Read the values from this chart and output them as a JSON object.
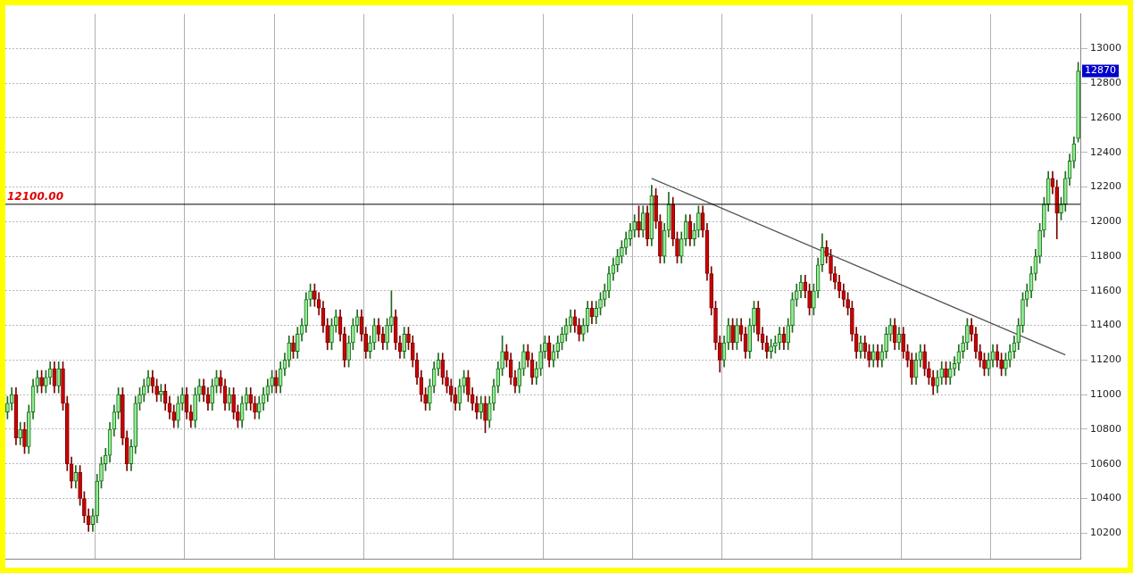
{
  "chart_data": {
    "type": "candlestick",
    "categories": [
      null,
      null,
      null,
      null,
      null,
      null,
      null,
      null,
      null,
      null,
      null,
      null,
      null,
      null,
      null,
      null,
      null,
      null,
      null,
      null,
      null,
      null,
      null,
      null,
      null,
      null,
      null,
      null,
      null,
      null,
      null,
      null,
      null,
      null,
      null,
      null,
      null,
      null,
      null,
      null,
      null,
      null,
      null,
      null,
      null,
      null,
      null,
      null,
      null,
      null,
      null,
      null,
      null,
      null,
      null,
      null,
      null,
      null,
      null,
      null,
      null,
      null,
      null,
      null,
      null,
      null,
      null,
      null,
      null,
      null,
      null,
      null,
      null,
      null,
      null,
      null,
      null,
      null,
      null,
      null,
      null,
      null,
      null,
      null,
      null,
      null,
      null,
      null,
      null,
      null,
      null,
      null,
      null,
      null,
      null,
      null,
      null,
      null,
      null,
      null,
      null,
      null,
      null,
      null,
      null,
      null,
      null,
      null,
      null,
      null,
      null,
      null,
      null,
      null,
      null,
      null,
      null,
      null,
      null,
      null,
      null,
      null,
      null,
      null,
      null,
      null,
      null,
      null,
      null,
      null,
      null,
      null,
      null,
      null,
      null,
      null,
      null,
      null,
      null,
      null,
      null,
      null,
      null,
      null,
      null,
      null,
      null,
      null,
      null,
      null,
      null,
      null,
      null,
      null,
      null,
      null,
      null,
      null,
      null,
      null,
      null,
      null,
      null,
      null,
      null,
      null,
      null,
      null,
      null,
      null,
      null,
      null,
      null,
      null,
      null,
      null,
      null,
      null,
      null,
      null,
      null,
      null,
      null,
      null,
      null,
      null,
      null,
      null,
      null,
      null,
      null,
      null,
      null,
      null,
      null,
      null,
      null,
      null,
      null,
      null,
      null,
      null,
      null,
      null,
      null,
      null,
      null,
      null,
      null,
      null,
      null,
      null,
      null,
      null,
      null,
      null,
      null,
      null,
      null,
      null,
      null,
      null,
      null,
      null,
      null,
      null,
      null,
      null,
      null,
      null,
      null,
      null,
      null,
      null,
      null,
      null,
      null,
      null,
      null,
      null,
      null,
      null,
      null,
      null,
      null,
      null,
      null,
      null,
      null,
      null,
      null,
      null
    ],
    "ohlc": [
      [
        10900,
        10990,
        10860,
        10950
      ],
      [
        10950,
        11040,
        10910,
        11000
      ],
      [
        11000,
        11040,
        10710,
        10750
      ],
      [
        10750,
        10840,
        10710,
        10800
      ],
      [
        10800,
        10840,
        10660,
        10700
      ],
      [
        10700,
        10940,
        10660,
        10900
      ],
      [
        10900,
        11090,
        10860,
        11050
      ],
      [
        11050,
        11140,
        11010,
        11100
      ],
      [
        11100,
        11140,
        11010,
        11050
      ],
      [
        11050,
        11140,
        11010,
        11100
      ],
      [
        11100,
        11190,
        11060,
        11150
      ],
      [
        11150,
        11190,
        11010,
        11050
      ],
      [
        11050,
        11190,
        11010,
        11150
      ],
      [
        11150,
        11190,
        10910,
        10950
      ],
      [
        10950,
        10990,
        10560,
        10600
      ],
      [
        10600,
        10640,
        10460,
        10500
      ],
      [
        10500,
        10590,
        10460,
        10550
      ],
      [
        10550,
        10590,
        10360,
        10400
      ],
      [
        10400,
        10440,
        10260,
        10300
      ],
      [
        10300,
        10340,
        10210,
        10250
      ],
      [
        10250,
        10340,
        10210,
        10300
      ],
      [
        10300,
        10540,
        10260,
        10500
      ],
      [
        10500,
        10640,
        10460,
        10600
      ],
      [
        10600,
        10690,
        10560,
        10650
      ],
      [
        10650,
        10840,
        10610,
        10800
      ],
      [
        10800,
        10940,
        10760,
        10900
      ],
      [
        10900,
        11040,
        10860,
        11000
      ],
      [
        11000,
        11040,
        10710,
        10750
      ],
      [
        10750,
        10790,
        10560,
        10600
      ],
      [
        10600,
        10740,
        10560,
        10700
      ],
      [
        10700,
        10990,
        10660,
        10950
      ],
      [
        10950,
        11040,
        10910,
        11000
      ],
      [
        11000,
        11090,
        10960,
        11050
      ],
      [
        11050,
        11140,
        11010,
        11100
      ],
      [
        11100,
        11140,
        11010,
        11050
      ],
      [
        11050,
        11090,
        10960,
        11000
      ],
      [
        11000,
        11060,
        10960,
        11020
      ],
      [
        11020,
        11060,
        10910,
        10950
      ],
      [
        10950,
        10990,
        10860,
        10900
      ],
      [
        10900,
        10940,
        10810,
        10850
      ],
      [
        10850,
        10990,
        10810,
        10950
      ],
      [
        10950,
        11040,
        10910,
        11000
      ],
      [
        11000,
        11040,
        10860,
        10900
      ],
      [
        10900,
        10940,
        10810,
        10850
      ],
      [
        10850,
        11040,
        10810,
        11000
      ],
      [
        11000,
        11090,
        10960,
        11050
      ],
      [
        11050,
        11090,
        10960,
        11000
      ],
      [
        11000,
        11040,
        10910,
        10950
      ],
      [
        10950,
        11090,
        10910,
        11050
      ],
      [
        11050,
        11140,
        11010,
        11100
      ],
      [
        11100,
        11140,
        11010,
        11050
      ],
      [
        11050,
        11090,
        10910,
        10950
      ],
      [
        10950,
        11040,
        10910,
        11000
      ],
      [
        11000,
        11040,
        10860,
        10900
      ],
      [
        10900,
        10940,
        10810,
        10850
      ],
      [
        10850,
        10990,
        10810,
        10950
      ],
      [
        10950,
        11040,
        10910,
        11000
      ],
      [
        11000,
        11040,
        10910,
        10950
      ],
      [
        10950,
        10990,
        10860,
        10900
      ],
      [
        10900,
        10990,
        10860,
        10950
      ],
      [
        10950,
        11040,
        10910,
        11000
      ],
      [
        11000,
        11090,
        10960,
        11050
      ],
      [
        11050,
        11140,
        11010,
        11100
      ],
      [
        11100,
        11140,
        11010,
        11050
      ],
      [
        11050,
        11190,
        11010,
        11150
      ],
      [
        11150,
        11240,
        11110,
        11200
      ],
      [
        11200,
        11340,
        11160,
        11300
      ],
      [
        11300,
        11340,
        11210,
        11250
      ],
      [
        11250,
        11390,
        11210,
        11350
      ],
      [
        11350,
        11440,
        11310,
        11400
      ],
      [
        11400,
        11590,
        11360,
        11550
      ],
      [
        11550,
        11640,
        11510,
        11600
      ],
      [
        11600,
        11640,
        11510,
        11550
      ],
      [
        11550,
        11590,
        11460,
        11500
      ],
      [
        11500,
        11540,
        11360,
        11400
      ],
      [
        11400,
        11440,
        11260,
        11300
      ],
      [
        11300,
        11440,
        11260,
        11400
      ],
      [
        11400,
        11490,
        11360,
        11450
      ],
      [
        11450,
        11490,
        11310,
        11350
      ],
      [
        11350,
        11390,
        11160,
        11200
      ],
      [
        11200,
        11340,
        11160,
        11300
      ],
      [
        11300,
        11440,
        11260,
        11400
      ],
      [
        11400,
        11490,
        11360,
        11450
      ],
      [
        11450,
        11490,
        11310,
        11350
      ],
      [
        11350,
        11390,
        11210,
        11250
      ],
      [
        11250,
        11340,
        11210,
        11300
      ],
      [
        11300,
        11440,
        11260,
        11400
      ],
      [
        11400,
        11440,
        11310,
        11350
      ],
      [
        11350,
        11390,
        11260,
        11300
      ],
      [
        11300,
        11440,
        11260,
        11400
      ],
      [
        11400,
        11600,
        11360,
        11450
      ],
      [
        11450,
        11490,
        11260,
        11300
      ],
      [
        11300,
        11340,
        11210,
        11250
      ],
      [
        11250,
        11390,
        11210,
        11350
      ],
      [
        11350,
        11390,
        11260,
        11300
      ],
      [
        11300,
        11340,
        11160,
        11200
      ],
      [
        11200,
        11240,
        11060,
        11100
      ],
      [
        11100,
        11140,
        10960,
        11000
      ],
      [
        11000,
        11040,
        10910,
        10950
      ],
      [
        10950,
        11090,
        10910,
        11050
      ],
      [
        11050,
        11190,
        11010,
        11150
      ],
      [
        11150,
        11240,
        11110,
        11200
      ],
      [
        11200,
        11240,
        11060,
        11100
      ],
      [
        11100,
        11140,
        11010,
        11050
      ],
      [
        11050,
        11090,
        10960,
        11000
      ],
      [
        11000,
        11040,
        10910,
        10950
      ],
      [
        10950,
        11090,
        10910,
        11050
      ],
      [
        11050,
        11140,
        11010,
        11100
      ],
      [
        11100,
        11140,
        10960,
        11000
      ],
      [
        11000,
        11040,
        10910,
        10950
      ],
      [
        10950,
        10990,
        10860,
        10900
      ],
      [
        10900,
        10990,
        10860,
        10950
      ],
      [
        10950,
        10990,
        10780,
        10850
      ],
      [
        10850,
        10990,
        10810,
        10950
      ],
      [
        10950,
        11090,
        10910,
        11050
      ],
      [
        11050,
        11190,
        11010,
        11150
      ],
      [
        11150,
        11340,
        11110,
        11250
      ],
      [
        11250,
        11290,
        11160,
        11200
      ],
      [
        11200,
        11240,
        11060,
        11100
      ],
      [
        11100,
        11140,
        11010,
        11050
      ],
      [
        11050,
        11190,
        11010,
        11150
      ],
      [
        11150,
        11290,
        11110,
        11250
      ],
      [
        11250,
        11290,
        11160,
        11200
      ],
      [
        11200,
        11240,
        11060,
        11100
      ],
      [
        11100,
        11190,
        11060,
        11150
      ],
      [
        11150,
        11290,
        11110,
        11250
      ],
      [
        11250,
        11340,
        11210,
        11300
      ],
      [
        11300,
        11340,
        11160,
        11200
      ],
      [
        11200,
        11290,
        11160,
        11250
      ],
      [
        11250,
        11340,
        11210,
        11300
      ],
      [
        11300,
        11390,
        11260,
        11350
      ],
      [
        11350,
        11440,
        11310,
        11400
      ],
      [
        11400,
        11490,
        11360,
        11450
      ],
      [
        11450,
        11490,
        11360,
        11400
      ],
      [
        11400,
        11440,
        11310,
        11350
      ],
      [
        11350,
        11440,
        11310,
        11400
      ],
      [
        11400,
        11540,
        11360,
        11500
      ],
      [
        11500,
        11540,
        11410,
        11450
      ],
      [
        11450,
        11540,
        11410,
        11500
      ],
      [
        11500,
        11590,
        11460,
        11550
      ],
      [
        11550,
        11640,
        11510,
        11600
      ],
      [
        11600,
        11740,
        11560,
        11700
      ],
      [
        11700,
        11790,
        11660,
        11750
      ],
      [
        11750,
        11840,
        11710,
        11800
      ],
      [
        11800,
        11890,
        11760,
        11850
      ],
      [
        11850,
        11940,
        11810,
        11900
      ],
      [
        11900,
        11990,
        11860,
        11950
      ],
      [
        11950,
        12040,
        11910,
        12000
      ],
      [
        12000,
        12090,
        11910,
        11950
      ],
      [
        11950,
        12090,
        11910,
        12050
      ],
      [
        12050,
        12090,
        11860,
        11900
      ],
      [
        11900,
        12210,
        11860,
        12150
      ],
      [
        12150,
        12190,
        11960,
        12000
      ],
      [
        12000,
        12040,
        11760,
        11800
      ],
      [
        11800,
        11990,
        11760,
        11950
      ],
      [
        11950,
        12170,
        11910,
        12100
      ],
      [
        12100,
        12140,
        11860,
        11900
      ],
      [
        11900,
        11940,
        11760,
        11800
      ],
      [
        11800,
        11940,
        11760,
        11900
      ],
      [
        11900,
        12040,
        11860,
        12000
      ],
      [
        12000,
        12040,
        11860,
        11900
      ],
      [
        11900,
        11990,
        11860,
        11950
      ],
      [
        11950,
        12090,
        11910,
        12050
      ],
      [
        12050,
        12090,
        11910,
        11950
      ],
      [
        11950,
        11990,
        11660,
        11700
      ],
      [
        11700,
        11740,
        11460,
        11500
      ],
      [
        11500,
        11540,
        11260,
        11300
      ],
      [
        11300,
        11340,
        11130,
        11200
      ],
      [
        11200,
        11340,
        11160,
        11300
      ],
      [
        11300,
        11440,
        11260,
        11400
      ],
      [
        11400,
        11440,
        11260,
        11300
      ],
      [
        11300,
        11440,
        11260,
        11400
      ],
      [
        11400,
        11440,
        11310,
        11350
      ],
      [
        11350,
        11390,
        11210,
        11250
      ],
      [
        11250,
        11440,
        11210,
        11400
      ],
      [
        11400,
        11540,
        11360,
        11500
      ],
      [
        11500,
        11540,
        11310,
        11350
      ],
      [
        11350,
        11390,
        11260,
        11300
      ],
      [
        11300,
        11340,
        11210,
        11250
      ],
      [
        11250,
        11320,
        11210,
        11280
      ],
      [
        11280,
        11340,
        11240,
        11300
      ],
      [
        11300,
        11390,
        11260,
        11350
      ],
      [
        11350,
        11390,
        11260,
        11300
      ],
      [
        11300,
        11440,
        11260,
        11400
      ],
      [
        11400,
        11590,
        11360,
        11550
      ],
      [
        11550,
        11640,
        11510,
        11600
      ],
      [
        11600,
        11690,
        11560,
        11650
      ],
      [
        11650,
        11690,
        11560,
        11600
      ],
      [
        11600,
        11640,
        11460,
        11500
      ],
      [
        11500,
        11640,
        11460,
        11600
      ],
      [
        11600,
        11790,
        11560,
        11750
      ],
      [
        11750,
        11930,
        11710,
        11850
      ],
      [
        11850,
        11890,
        11760,
        11800
      ],
      [
        11800,
        11840,
        11660,
        11700
      ],
      [
        11700,
        11740,
        11610,
        11650
      ],
      [
        11650,
        11690,
        11560,
        11600
      ],
      [
        11600,
        11640,
        11510,
        11550
      ],
      [
        11550,
        11590,
        11460,
        11500
      ],
      [
        11500,
        11540,
        11310,
        11350
      ],
      [
        11350,
        11390,
        11210,
        11250
      ],
      [
        11250,
        11340,
        11210,
        11300
      ],
      [
        11300,
        11340,
        11210,
        11250
      ],
      [
        11250,
        11290,
        11160,
        11200
      ],
      [
        11200,
        11290,
        11160,
        11250
      ],
      [
        11250,
        11290,
        11160,
        11200
      ],
      [
        11200,
        11290,
        11160,
        11250
      ],
      [
        11250,
        11390,
        11210,
        11350
      ],
      [
        11350,
        11440,
        11310,
        11400
      ],
      [
        11400,
        11440,
        11260,
        11300
      ],
      [
        11300,
        11390,
        11260,
        11350
      ],
      [
        11350,
        11390,
        11210,
        11250
      ],
      [
        11250,
        11290,
        11160,
        11200
      ],
      [
        11200,
        11240,
        11060,
        11100
      ],
      [
        11100,
        11240,
        11060,
        11200
      ],
      [
        11200,
        11290,
        11160,
        11250
      ],
      [
        11250,
        11290,
        11110,
        11150
      ],
      [
        11150,
        11190,
        11060,
        11100
      ],
      [
        11100,
        11140,
        11000,
        11050
      ],
      [
        11050,
        11140,
        11010,
        11100
      ],
      [
        11100,
        11190,
        11060,
        11150
      ],
      [
        11150,
        11190,
        11060,
        11100
      ],
      [
        11100,
        11190,
        11060,
        11150
      ],
      [
        11150,
        11220,
        11110,
        11180
      ],
      [
        11180,
        11290,
        11140,
        11250
      ],
      [
        11250,
        11340,
        11210,
        11300
      ],
      [
        11300,
        11440,
        11260,
        11400
      ],
      [
        11400,
        11440,
        11310,
        11350
      ],
      [
        11350,
        11390,
        11210,
        11250
      ],
      [
        11250,
        11290,
        11160,
        11200
      ],
      [
        11200,
        11240,
        11110,
        11150
      ],
      [
        11150,
        11240,
        11110,
        11200
      ],
      [
        11200,
        11290,
        11160,
        11250
      ],
      [
        11250,
        11290,
        11160,
        11200
      ],
      [
        11200,
        11240,
        11110,
        11150
      ],
      [
        11150,
        11240,
        11110,
        11200
      ],
      [
        11200,
        11290,
        11160,
        11250
      ],
      [
        11250,
        11340,
        11210,
        11300
      ],
      [
        11300,
        11440,
        11260,
        11400
      ],
      [
        11400,
        11590,
        11360,
        11550
      ],
      [
        11550,
        11640,
        11510,
        11600
      ],
      [
        11600,
        11740,
        11560,
        11700
      ],
      [
        11700,
        11840,
        11660,
        11800
      ],
      [
        11800,
        11990,
        11760,
        11950
      ],
      [
        11950,
        12140,
        11910,
        12100
      ],
      [
        12100,
        12290,
        12060,
        12250
      ],
      [
        12250,
        12290,
        12160,
        12200
      ],
      [
        12200,
        12240,
        11900,
        12050
      ],
      [
        12050,
        12140,
        12010,
        12100
      ],
      [
        12100,
        12290,
        12060,
        12250
      ],
      [
        12250,
        12390,
        12210,
        12350
      ],
      [
        12350,
        12490,
        12310,
        12450
      ],
      [
        12480,
        12920,
        12460,
        12870
      ]
    ],
    "series": [
      {
        "type": "line",
        "color": "#555555",
        "values": [
          null,
          null,
          null,
          null,
          null,
          null,
          null,
          null,
          null,
          null,
          null,
          null,
          null,
          null,
          null,
          null,
          null,
          null,
          null,
          null,
          null,
          null,
          null,
          null,
          null,
          null,
          null,
          null,
          null,
          null,
          null,
          null,
          null,
          null,
          null,
          null,
          null,
          null,
          null,
          null,
          null,
          null,
          null,
          null,
          null,
          null,
          null,
          null,
          null,
          null,
          null,
          null,
          null,
          null,
          null,
          null,
          null,
          null,
          null,
          null,
          null,
          null,
          null,
          null,
          null,
          null,
          null,
          null,
          null,
          null,
          null,
          null,
          null,
          null,
          null,
          null,
          null,
          null,
          null,
          null,
          null,
          null,
          null,
          null,
          null,
          null,
          null,
          null,
          null,
          null,
          null,
          null,
          null,
          null,
          null,
          null,
          null,
          null,
          null,
          null,
          null,
          null,
          null,
          null,
          null,
          null,
          null,
          null,
          null,
          null,
          null,
          null,
          null,
          null,
          null,
          null,
          null,
          null,
          null,
          null,
          null,
          null,
          null,
          null,
          null,
          null,
          null,
          null,
          null,
          null,
          null,
          null,
          null,
          null,
          null,
          null,
          null,
          null,
          null,
          null,
          null,
          null,
          null,
          null,
          null,
          null,
          null,
          null,
          null,
          null,
          null,
          12250,
          null,
          null,
          null,
          null,
          null,
          null,
          null,
          null,
          null,
          null,
          null,
          null,
          null,
          null,
          null,
          null,
          null,
          null,
          null,
          null,
          null,
          null,
          null,
          null,
          null,
          null,
          null,
          null,
          null,
          null,
          null,
          null,
          null,
          null,
          null,
          null,
          null,
          null,
          null,
          null,
          null,
          null,
          null,
          null,
          null,
          null,
          null,
          null,
          null,
          null,
          null,
          null,
          null,
          null,
          null,
          null,
          null,
          null,
          null,
          null,
          null,
          null,
          null,
          null,
          null,
          null,
          null,
          null,
          null,
          null,
          null,
          null,
          null,
          null,
          null,
          null,
          null,
          null,
          null,
          null,
          null,
          null,
          null,
          null,
          null,
          null,
          null,
          null,
          null,
          null,
          null,
          null,
          null,
          null,
          null,
          null,
          11230,
          null,
          null,
          null
        ]
      }
    ],
    "ylim": [
      10050,
      13200
    ],
    "yticks": [
      10200,
      10400,
      10600,
      10800,
      11000,
      11200,
      11400,
      11600,
      11800,
      12000,
      12200,
      12400,
      12600,
      12800,
      13000
    ],
    "grid": true,
    "tick_labels": "y",
    "ref_lines": [
      {
        "axis": "y",
        "value": 12100,
        "label": "12100.00",
        "color": "#000000"
      }
    ],
    "annotations": [
      {
        "text": "12870",
        "y": 12870
      }
    ]
  }
}
